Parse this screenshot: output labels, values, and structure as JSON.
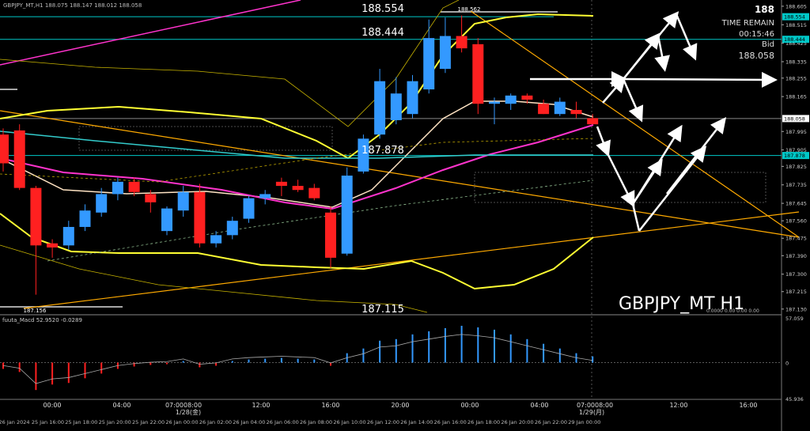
{
  "symbol_label": "GBPJPY_MT H1",
  "header_left": "GBPJPY_MT,H1  188.075 188.147 188.012 188.058",
  "indicator_label": "fuuta_Macd 52.9520  -0.0289",
  "info": {
    "big_price": "188",
    "time_remain_label": "TIME REMAIN",
    "time_remain": "00:15:46",
    "bid_label": "Bid",
    "bid": "188.058"
  },
  "price_labels": [
    "188.554",
    "188.444",
    "187.878",
    "187.115",
    "188.562",
    "187.156"
  ],
  "axis_ticks": [
    {
      "price": 188.605,
      "label": "188.605"
    },
    {
      "price": 188.515,
      "label": "188.515"
    },
    {
      "price": 188.425,
      "label": "188.425"
    },
    {
      "price": 188.335,
      "label": "188.335"
    },
    {
      "price": 188.255,
      "label": "188.255"
    },
    {
      "price": 188.165,
      "label": "188.165"
    },
    {
      "price": 187.995,
      "label": "187.995"
    },
    {
      "price": 187.905,
      "label": "187.905"
    },
    {
      "price": 187.825,
      "label": "187.825"
    },
    {
      "price": 187.735,
      "label": "187.735"
    },
    {
      "price": 187.645,
      "label": "187.645"
    },
    {
      "price": 187.56,
      "label": "187.560"
    },
    {
      "price": 187.475,
      "label": "187.475"
    },
    {
      "price": 187.39,
      "label": "187.390"
    },
    {
      "price": 187.3,
      "label": "187.300"
    },
    {
      "price": 187.215,
      "label": "187.215"
    },
    {
      "price": 187.13,
      "label": "187.130"
    }
  ],
  "axis_highlights": [
    {
      "price": 188.554,
      "label": "188.554",
      "color": "#00c8c8"
    },
    {
      "price": 188.444,
      "label": "188.444",
      "color": "#00c8c8"
    },
    {
      "price": 188.058,
      "label": "188.058",
      "color": "#ffffff"
    },
    {
      "price": 187.878,
      "label": "187.878",
      "color": "#00c8c8"
    }
  ],
  "macd_ticks": [
    {
      "v": 57.059,
      "label": "57.059"
    },
    {
      "v": 0,
      "label": "0"
    },
    {
      "v": -45.936,
      "label": "45.936"
    }
  ],
  "macd_zero_text": "0.0000 0.00 0.00 0.00",
  "time_labels_top": [
    "00:00",
    "04:00",
    "07:0008:00",
    "12:00",
    "16:00",
    "20:00",
    "00:00",
    "04:00",
    "07:0008:00",
    "12:00",
    "16:00"
  ],
  "date_labels_mid": [
    "1/28(金)",
    "1/29(月)"
  ],
  "time_labels_bottom": [
    "26 Jan 2024",
    "25 Jan 16:00",
    "25 Jan 18:00",
    "25 Jan 20:00",
    "25 Jan 22:00",
    "26 Jan 00:00",
    "26 Jan 02:00",
    "26 Jan 04:00",
    "26 Jan 06:00",
    "26 Jan 08:00",
    "26 Jan 10:00",
    "26 Jan 12:00",
    "26 Jan 14:00",
    "26 Jan 16:00",
    "26 Jan 18:00",
    "26 Jan 20:00",
    "26 Jan 22:00",
    "29 Jan 00:00"
  ],
  "colors": {
    "bull": "#3399ff",
    "bear": "#ff2020",
    "cyan": "#00c8c8",
    "yellow": "#ffff33",
    "magenta": "#ff33cc",
    "orange": "#ffaa00"
  },
  "chart_data": {
    "type": "candlestick",
    "timeframe": "H1",
    "ylim": [
      187.11,
      188.62
    ],
    "candles": [
      {
        "o": 187.98,
        "h": 188.01,
        "l": 187.8,
        "c": 187.84
      },
      {
        "o": 188.0,
        "h": 188.03,
        "l": 187.71,
        "c": 187.72
      },
      {
        "o": 187.72,
        "h": 187.73,
        "l": 187.2,
        "c": 187.44
      },
      {
        "o": 187.45,
        "h": 187.47,
        "l": 187.38,
        "c": 187.43
      },
      {
        "o": 187.44,
        "h": 187.56,
        "l": 187.42,
        "c": 187.53
      },
      {
        "o": 187.53,
        "h": 187.64,
        "l": 187.51,
        "c": 187.61
      },
      {
        "o": 187.6,
        "h": 187.72,
        "l": 187.58,
        "c": 187.69
      },
      {
        "o": 187.69,
        "h": 187.77,
        "l": 187.66,
        "c": 187.75
      },
      {
        "o": 187.75,
        "h": 187.77,
        "l": 187.68,
        "c": 187.7
      },
      {
        "o": 187.69,
        "h": 187.71,
        "l": 187.6,
        "c": 187.65
      },
      {
        "o": 187.51,
        "h": 187.63,
        "l": 187.49,
        "c": 187.62
      },
      {
        "o": 187.61,
        "h": 187.73,
        "l": 187.58,
        "c": 187.7
      },
      {
        "o": 187.7,
        "h": 187.74,
        "l": 187.43,
        "c": 187.45
      },
      {
        "o": 187.45,
        "h": 187.51,
        "l": 187.43,
        "c": 187.49
      },
      {
        "o": 187.49,
        "h": 187.58,
        "l": 187.47,
        "c": 187.56
      },
      {
        "o": 187.57,
        "h": 187.68,
        "l": 187.55,
        "c": 187.67
      },
      {
        "o": 187.67,
        "h": 187.71,
        "l": 187.64,
        "c": 187.69
      },
      {
        "o": 187.75,
        "h": 187.77,
        "l": 187.68,
        "c": 187.73
      },
      {
        "o": 187.73,
        "h": 187.76,
        "l": 187.7,
        "c": 187.71
      },
      {
        "o": 187.72,
        "h": 187.74,
        "l": 187.66,
        "c": 187.67
      },
      {
        "o": 187.6,
        "h": 187.63,
        "l": 187.33,
        "c": 187.38
      },
      {
        "o": 187.4,
        "h": 187.82,
        "l": 187.39,
        "c": 187.78
      },
      {
        "o": 187.8,
        "h": 187.98,
        "l": 187.79,
        "c": 187.96
      },
      {
        "o": 187.98,
        "h": 188.3,
        "l": 187.96,
        "c": 188.24
      },
      {
        "o": 188.05,
        "h": 188.26,
        "l": 188.03,
        "c": 188.18
      },
      {
        "o": 188.08,
        "h": 188.27,
        "l": 188.06,
        "c": 188.24
      },
      {
        "o": 188.2,
        "h": 188.54,
        "l": 188.18,
        "c": 188.45
      },
      {
        "o": 188.3,
        "h": 188.55,
        "l": 188.28,
        "c": 188.46
      },
      {
        "o": 188.46,
        "h": 188.56,
        "l": 188.38,
        "c": 188.4
      },
      {
        "o": 188.42,
        "h": 188.45,
        "l": 188.08,
        "c": 188.13
      },
      {
        "o": 188.13,
        "h": 188.16,
        "l": 188.03,
        "c": 188.14
      },
      {
        "o": 188.13,
        "h": 188.18,
        "l": 188.1,
        "c": 188.17
      },
      {
        "o": 188.17,
        "h": 188.18,
        "l": 188.13,
        "c": 188.15
      },
      {
        "o": 188.13,
        "h": 188.15,
        "l": 188.08,
        "c": 188.08
      },
      {
        "o": 188.08,
        "h": 188.16,
        "l": 188.07,
        "c": 188.14
      },
      {
        "o": 188.1,
        "h": 188.14,
        "l": 188.06,
        "c": 188.08
      },
      {
        "o": 188.06,
        "h": 188.08,
        "l": 188.03,
        "c": 188.03
      }
    ],
    "macd_hist": [
      -8,
      -12,
      -35,
      -28,
      -26,
      -20,
      -14,
      -8,
      -5,
      -3,
      -2,
      2,
      -6,
      -4,
      2,
      4,
      5,
      6,
      5,
      4,
      -4,
      12,
      18,
      28,
      30,
      36,
      40,
      44,
      47,
      45,
      42,
      36,
      30,
      24,
      18,
      12,
      8
    ],
    "horizontal_levels": [
      188.554,
      188.444,
      187.878,
      187.156,
      187.115
    ]
  }
}
